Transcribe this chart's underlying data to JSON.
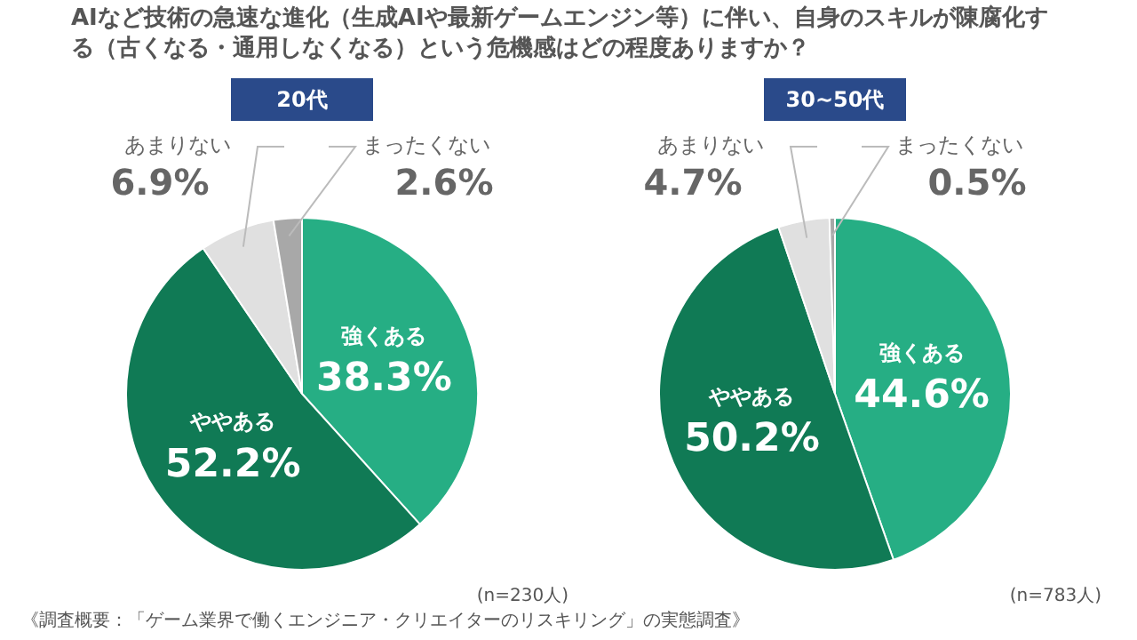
{
  "chart_data": [
    {
      "type": "pie",
      "title": "AIなど技術の急速な進化（生成AIや最新ゲームエンジン等）に伴い、自身のスキルが陳腐化する（古くなる・通用しなくなる）という危機感はどの程度ありますか？",
      "subtitle": "20代",
      "categories": [
        "強くある",
        "ややある",
        "あまりない",
        "まったくない"
      ],
      "values": [
        38.3,
        52.2,
        6.9,
        2.6
      ],
      "value_labels": [
        "38.3%",
        "52.2%",
        "6.9%",
        "2.6%"
      ],
      "colors": [
        "#26ae84",
        "#107a55",
        "#e0e0e0",
        "#a8a8a8"
      ],
      "legend": false,
      "annotations": [
        "(n=230人)",
        "《調査概要：「ゲーム業界で働くエンジニア・クリエイターのリスキリング」の実態調査》"
      ]
    },
    {
      "type": "pie",
      "subtitle": "30~50代",
      "categories": [
        "強くある",
        "ややある",
        "あまりない",
        "まったくない"
      ],
      "values": [
        44.6,
        50.2,
        4.7,
        0.5
      ],
      "value_labels": [
        "44.6%",
        "50.2%",
        "4.7%",
        "0.5%"
      ],
      "colors": [
        "#26ae84",
        "#107a55",
        "#e0e0e0",
        "#a8a8a8"
      ],
      "legend": false,
      "annotations": [
        "(n=783人)"
      ]
    }
  ]
}
